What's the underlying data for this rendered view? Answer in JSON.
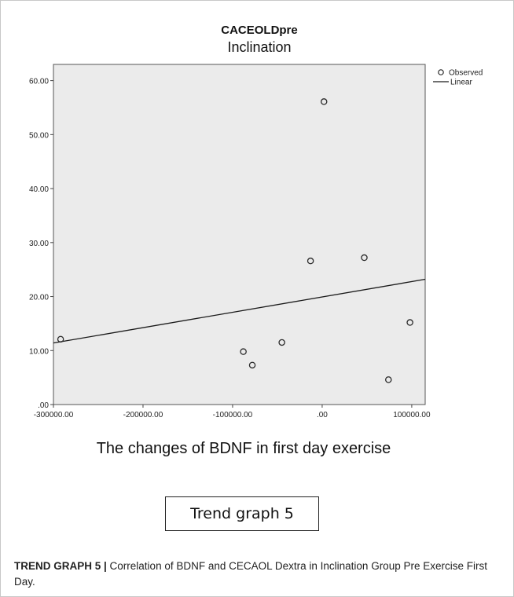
{
  "chart_data": {
    "type": "scatter",
    "title": "CACEOLDpre",
    "subtitle": "Inclination",
    "xlabel": "The changes of BDNF in first day exercise",
    "ylabel": "",
    "xlim": [
      -300000,
      115000
    ],
    "ylim": [
      0,
      63
    ],
    "x_ticks": [
      -300000,
      -200000,
      -100000,
      0,
      100000
    ],
    "x_tick_labels": [
      "-300000.00",
      "-200000.00",
      "-100000.00",
      ".00",
      "100000.00"
    ],
    "y_ticks": [
      0,
      10,
      20,
      30,
      40,
      50,
      60
    ],
    "y_tick_labels": [
      ".00",
      "10.00",
      "20.00",
      "30.00",
      "40.00",
      "50.00",
      "60.00"
    ],
    "grid": false,
    "legend_position": "top-right",
    "series": [
      {
        "name": "Observed",
        "kind": "scatter",
        "points": [
          {
            "x": -292000,
            "y": 12.1
          },
          {
            "x": -88000,
            "y": 9.8
          },
          {
            "x": -78000,
            "y": 7.3
          },
          {
            "x": -45000,
            "y": 11.5
          },
          {
            "x": -13000,
            "y": 26.6
          },
          {
            "x": 2000,
            "y": 56.1
          },
          {
            "x": 47000,
            "y": 27.2
          },
          {
            "x": 74000,
            "y": 4.6
          },
          {
            "x": 98000,
            "y": 15.2
          }
        ]
      },
      {
        "name": "Linear",
        "kind": "line",
        "points": [
          {
            "x": -300000,
            "y": 11.4
          },
          {
            "x": 115000,
            "y": 23.2
          }
        ]
      }
    ]
  },
  "colors": {
    "plot_bg": "#ebebeb",
    "marker": "#2a2a2a",
    "line": "#1a1a1a"
  },
  "trend_box_label": "Trend graph 5",
  "caption": {
    "head": "TREND GRAPH 5 |",
    "text": " Correlation of BDNF and CECAOL Dextra in Inclination Group Pre Exercise First Day."
  }
}
